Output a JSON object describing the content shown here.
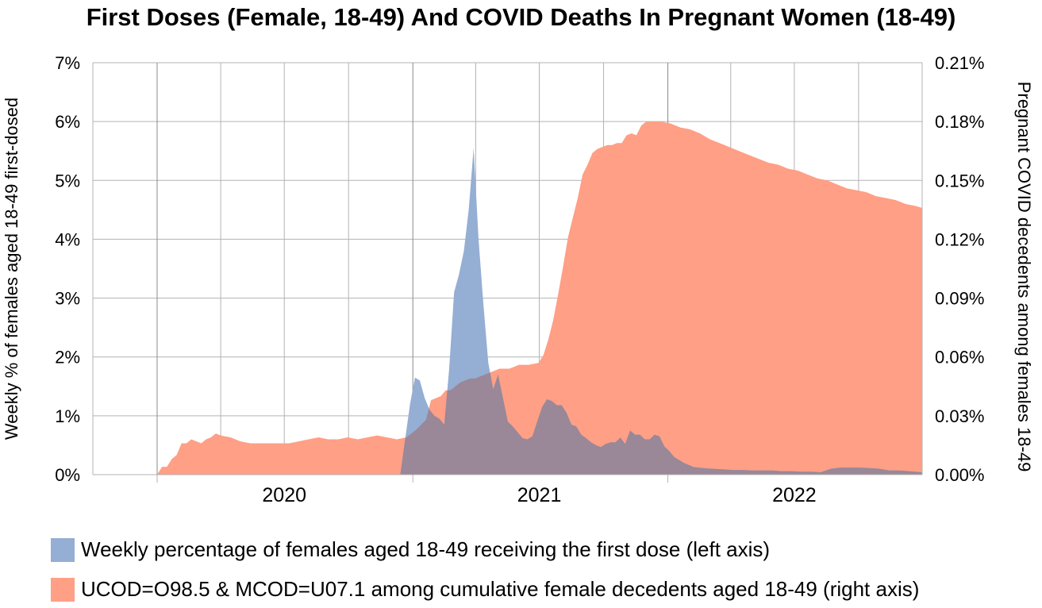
{
  "colors": {
    "first_dose": "#95aed3",
    "deaths": "#ff9f85",
    "overlap": "#9a8797",
    "grid": "#b3b3b3",
    "axis": "#b3b3b3"
  },
  "chart_data": {
    "type": "area",
    "title": "First Doses (Female, 18-49) And COVID Deaths In Pregnant Women (18-49)",
    "ylabel": "Weekly % of females aged 18-49 first-dosed",
    "y2label": "Pregnant COVID decedents among females 18-49",
    "ylim": [
      0,
      7
    ],
    "y2lim": [
      0,
      0.21
    ],
    "y_ticks": [
      "0%",
      "1%",
      "2%",
      "3%",
      "4%",
      "5%",
      "6%",
      "7%"
    ],
    "y2_ticks": [
      "0.00%",
      "0.03%",
      "0.06%",
      "0.09%",
      "0.12%",
      "0.15%",
      "0.18%",
      "0.21%"
    ],
    "x_ticks": [
      {
        "label": "2020",
        "x": "2020-07-01"
      },
      {
        "label": "2021",
        "x": "2021-07-01"
      },
      {
        "label": "2022",
        "x": "2022-07-01"
      }
    ],
    "xlim": [
      "2019-10-01",
      "2022-12-31"
    ],
    "grid": true,
    "legend_position": "bottom",
    "series": [
      {
        "name": "Weekly percentage of females aged 18-49 receiving the first dose (left axis)",
        "axis": "left",
        "points": [
          [
            "2020-12-14",
            0.0
          ],
          [
            "2020-12-21",
            0.6
          ],
          [
            "2020-12-28",
            1.2
          ],
          [
            "2021-01-04",
            1.65
          ],
          [
            "2021-01-11",
            1.6
          ],
          [
            "2021-01-18",
            1.3
          ],
          [
            "2021-01-25",
            1.1
          ],
          [
            "2021-02-01",
            1.0
          ],
          [
            "2021-02-08",
            0.95
          ],
          [
            "2021-02-15",
            0.85
          ],
          [
            "2021-02-22",
            1.8
          ],
          [
            "2021-03-01",
            3.1
          ],
          [
            "2021-03-08",
            3.4
          ],
          [
            "2021-03-15",
            3.8
          ],
          [
            "2021-03-22",
            4.5
          ],
          [
            "2021-03-29",
            5.55
          ],
          [
            "2021-04-05",
            4.0
          ],
          [
            "2021-04-12",
            2.9
          ],
          [
            "2021-04-19",
            1.9
          ],
          [
            "2021-04-26",
            1.45
          ],
          [
            "2021-05-03",
            1.7
          ],
          [
            "2021-05-10",
            1.3
          ],
          [
            "2021-05-17",
            0.9
          ],
          [
            "2021-05-24",
            0.82
          ],
          [
            "2021-05-31",
            0.72
          ],
          [
            "2021-06-07",
            0.62
          ],
          [
            "2021-06-14",
            0.6
          ],
          [
            "2021-06-21",
            0.65
          ],
          [
            "2021-06-28",
            0.9
          ],
          [
            "2021-07-05",
            1.15
          ],
          [
            "2021-07-12",
            1.28
          ],
          [
            "2021-07-19",
            1.25
          ],
          [
            "2021-07-26",
            1.18
          ],
          [
            "2021-08-02",
            1.18
          ],
          [
            "2021-08-09",
            1.05
          ],
          [
            "2021-08-16",
            0.85
          ],
          [
            "2021-08-23",
            0.82
          ],
          [
            "2021-08-30",
            0.68
          ],
          [
            "2021-09-06",
            0.62
          ],
          [
            "2021-09-13",
            0.55
          ],
          [
            "2021-09-20",
            0.5
          ],
          [
            "2021-09-27",
            0.47
          ],
          [
            "2021-10-04",
            0.52
          ],
          [
            "2021-10-11",
            0.55
          ],
          [
            "2021-10-18",
            0.55
          ],
          [
            "2021-10-25",
            0.63
          ],
          [
            "2021-11-01",
            0.52
          ],
          [
            "2021-11-08",
            0.75
          ],
          [
            "2021-11-15",
            0.68
          ],
          [
            "2021-11-22",
            0.68
          ],
          [
            "2021-11-29",
            0.6
          ],
          [
            "2021-12-06",
            0.6
          ],
          [
            "2021-12-13",
            0.68
          ],
          [
            "2021-12-20",
            0.65
          ],
          [
            "2021-12-27",
            0.48
          ],
          [
            "2022-01-03",
            0.4
          ],
          [
            "2022-01-10",
            0.3
          ],
          [
            "2022-01-24",
            0.2
          ],
          [
            "2022-02-07",
            0.13
          ],
          [
            "2022-02-21",
            0.11
          ],
          [
            "2022-03-07",
            0.1
          ],
          [
            "2022-03-21",
            0.09
          ],
          [
            "2022-04-04",
            0.08
          ],
          [
            "2022-04-18",
            0.08
          ],
          [
            "2022-05-02",
            0.07
          ],
          [
            "2022-05-16",
            0.07
          ],
          [
            "2022-05-30",
            0.07
          ],
          [
            "2022-06-13",
            0.06
          ],
          [
            "2022-06-27",
            0.06
          ],
          [
            "2022-07-11",
            0.05
          ],
          [
            "2022-07-25",
            0.05
          ],
          [
            "2022-08-08",
            0.04
          ],
          [
            "2022-08-22",
            0.1
          ],
          [
            "2022-09-05",
            0.12
          ],
          [
            "2022-09-19",
            0.12
          ],
          [
            "2022-10-03",
            0.12
          ],
          [
            "2022-10-17",
            0.11
          ],
          [
            "2022-10-31",
            0.1
          ],
          [
            "2022-11-14",
            0.07
          ],
          [
            "2022-11-28",
            0.07
          ],
          [
            "2022-12-12",
            0.06
          ],
          [
            "2022-12-31",
            0.04
          ]
        ]
      },
      {
        "name": "UCOD=O98.5 & MCOD=U07.1 among cumulative female decedents aged 18-49 (right axis)",
        "axis": "right",
        "points": [
          [
            "2020-01-01",
            0.0
          ],
          [
            "2020-01-08",
            0.004
          ],
          [
            "2020-01-15",
            0.004
          ],
          [
            "2020-01-22",
            0.008
          ],
          [
            "2020-01-29",
            0.01
          ],
          [
            "2020-02-05",
            0.016
          ],
          [
            "2020-02-12",
            0.016
          ],
          [
            "2020-02-19",
            0.018
          ],
          [
            "2020-02-26",
            0.017
          ],
          [
            "2020-03-04",
            0.016
          ],
          [
            "2020-03-11",
            0.018
          ],
          [
            "2020-03-18",
            0.019
          ],
          [
            "2020-03-25",
            0.021
          ],
          [
            "2020-04-01",
            0.02
          ],
          [
            "2020-04-15",
            0.019
          ],
          [
            "2020-04-29",
            0.017
          ],
          [
            "2020-05-13",
            0.016
          ],
          [
            "2020-05-27",
            0.016
          ],
          [
            "2020-06-10",
            0.016
          ],
          [
            "2020-06-24",
            0.016
          ],
          [
            "2020-07-08",
            0.016
          ],
          [
            "2020-07-22",
            0.017
          ],
          [
            "2020-08-05",
            0.018
          ],
          [
            "2020-08-19",
            0.019
          ],
          [
            "2020-09-02",
            0.018
          ],
          [
            "2020-09-16",
            0.018
          ],
          [
            "2020-09-30",
            0.019
          ],
          [
            "2020-10-14",
            0.018
          ],
          [
            "2020-10-28",
            0.019
          ],
          [
            "2020-11-11",
            0.02
          ],
          [
            "2020-11-25",
            0.019
          ],
          [
            "2020-12-09",
            0.018
          ],
          [
            "2020-12-23",
            0.019
          ],
          [
            "2021-01-06",
            0.023
          ],
          [
            "2021-01-20",
            0.028
          ],
          [
            "2021-01-27",
            0.038
          ],
          [
            "2021-02-03",
            0.039
          ],
          [
            "2021-02-10",
            0.04
          ],
          [
            "2021-02-17",
            0.043
          ],
          [
            "2021-02-24",
            0.043
          ],
          [
            "2021-03-03",
            0.045
          ],
          [
            "2021-03-10",
            0.047
          ],
          [
            "2021-03-17",
            0.048
          ],
          [
            "2021-03-24",
            0.049
          ],
          [
            "2021-03-31",
            0.049
          ],
          [
            "2021-04-07",
            0.05
          ],
          [
            "2021-04-14",
            0.051
          ],
          [
            "2021-04-21",
            0.052
          ],
          [
            "2021-04-28",
            0.053
          ],
          [
            "2021-05-05",
            0.054
          ],
          [
            "2021-05-12",
            0.054
          ],
          [
            "2021-05-19",
            0.054
          ],
          [
            "2021-05-26",
            0.055
          ],
          [
            "2021-06-02",
            0.056
          ],
          [
            "2021-06-16",
            0.056
          ],
          [
            "2021-06-30",
            0.057
          ],
          [
            "2021-07-07",
            0.061
          ],
          [
            "2021-07-14",
            0.069
          ],
          [
            "2021-07-21",
            0.079
          ],
          [
            "2021-07-28",
            0.092
          ],
          [
            "2021-08-04",
            0.106
          ],
          [
            "2021-08-11",
            0.121
          ],
          [
            "2021-08-18",
            0.131
          ],
          [
            "2021-08-25",
            0.141
          ],
          [
            "2021-09-01",
            0.153
          ],
          [
            "2021-09-08",
            0.158
          ],
          [
            "2021-09-15",
            0.164
          ],
          [
            "2021-09-22",
            0.166
          ],
          [
            "2021-09-29",
            0.167
          ],
          [
            "2021-10-06",
            0.168
          ],
          [
            "2021-10-13",
            0.168
          ],
          [
            "2021-10-20",
            0.169
          ],
          [
            "2021-10-27",
            0.169
          ],
          [
            "2021-11-03",
            0.173
          ],
          [
            "2021-11-10",
            0.174
          ],
          [
            "2021-11-17",
            0.173
          ],
          [
            "2021-11-24",
            0.178
          ],
          [
            "2021-12-01",
            0.18
          ],
          [
            "2021-12-08",
            0.18
          ],
          [
            "2021-12-22",
            0.18
          ],
          [
            "2022-01-05",
            0.179
          ],
          [
            "2022-01-19",
            0.177
          ],
          [
            "2022-02-02",
            0.176
          ],
          [
            "2022-02-16",
            0.174
          ],
          [
            "2022-03-02",
            0.171
          ],
          [
            "2022-03-16",
            0.169
          ],
          [
            "2022-03-30",
            0.167
          ],
          [
            "2022-04-13",
            0.165
          ],
          [
            "2022-04-27",
            0.163
          ],
          [
            "2022-05-11",
            0.161
          ],
          [
            "2022-05-25",
            0.159
          ],
          [
            "2022-06-08",
            0.158
          ],
          [
            "2022-06-22",
            0.156
          ],
          [
            "2022-07-06",
            0.155
          ],
          [
            "2022-07-20",
            0.153
          ],
          [
            "2022-08-03",
            0.151
          ],
          [
            "2022-08-17",
            0.15
          ],
          [
            "2022-08-31",
            0.148
          ],
          [
            "2022-09-14",
            0.146
          ],
          [
            "2022-09-28",
            0.145
          ],
          [
            "2022-10-12",
            0.144
          ],
          [
            "2022-10-26",
            0.142
          ],
          [
            "2022-11-09",
            0.141
          ],
          [
            "2022-11-23",
            0.14
          ],
          [
            "2022-12-07",
            0.138
          ],
          [
            "2022-12-21",
            0.137
          ],
          [
            "2022-12-31",
            0.136
          ]
        ]
      }
    ]
  }
}
